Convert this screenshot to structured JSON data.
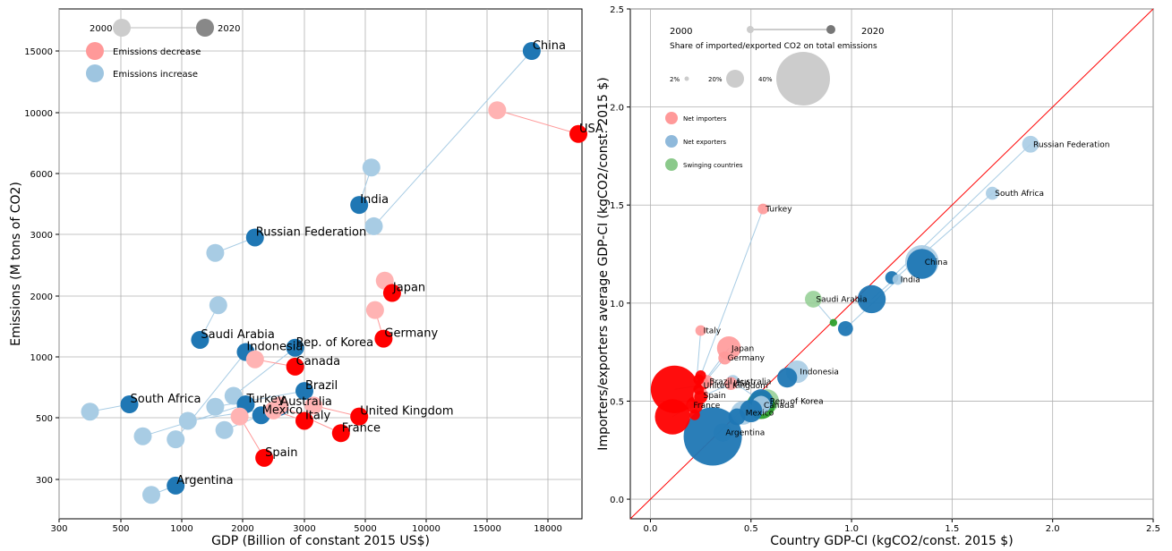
{
  "chart_data": [
    {
      "type": "scatter",
      "title": "",
      "xlabel": "GDP (Billion of constant 2015 US$)",
      "ylabel": "Emissions (M tons of CO2)",
      "x_ticks": [
        "300",
        "500",
        "1000",
        "2000",
        "3000",
        "5000",
        "10000",
        "15000",
        "18000"
      ],
      "y_ticks": [
        "300",
        "500",
        "1000",
        "2000",
        "3000",
        "6000",
        "10000",
        "15000"
      ],
      "grid": true,
      "legend": {
        "position": "top-left",
        "year_start": "2000",
        "year_end": "2020",
        "items": [
          {
            "label": "Emissions decrease",
            "color": "#ff9999"
          },
          {
            "label": "Emissions increase",
            "color": "#9ec5e0"
          }
        ]
      },
      "colors": {
        "decrease_2020": "#ff0000",
        "decrease_2000": "#ffb3b3",
        "increase_2020": "#1f77b4",
        "increase_2000": "#a8cce4",
        "line_decrease": "#ff9999",
        "line_increase": "#a8cce4"
      },
      "series": [
        {
          "label": "China",
          "trend": "increase",
          "x2000": 5700,
          "y2000": 3400,
          "x2020": 17200,
          "y2020": 15000
        },
        {
          "label": "USA",
          "trend": "decrease",
          "x2000": 15500,
          "y2000": 10200,
          "x2020": 19500,
          "y2020": 8600
        },
        {
          "label": "India",
          "trend": "increase",
          "x2000": 5500,
          "y2000": 6400,
          "x2020": 4800,
          "y2020": 4450
        },
        {
          "label": "Russian Federation",
          "trend": "increase",
          "x2000": 1550,
          "y2000": 2700,
          "x2020": 2200,
          "y2020": 2950
        },
        {
          "label": "Japan",
          "trend": "decrease",
          "x2000": 6600,
          "y2000": 2250,
          "x2020": 7200,
          "y2020": 2050
        },
        {
          "label": "Germany",
          "trend": "decrease",
          "x2000": 5800,
          "y2000": 1770,
          "x2020": 6500,
          "y2020": 1300
        },
        {
          "label": "Saudi Arabia",
          "trend": "increase",
          "x2000": 1600,
          "y2000": 1850,
          "x2020": 1300,
          "y2020": 1280
        },
        {
          "label": "Rep. of Korea",
          "trend": "increase",
          "x2000": 1850,
          "y2000": 680,
          "x2020": 2850,
          "y2020": 1150
        },
        {
          "label": "Indonesia",
          "trend": "increase",
          "x2000": 950,
          "y2000": 430,
          "x2020": 2050,
          "y2020": 1080
        },
        {
          "label": "Canada",
          "trend": "decrease",
          "x2000": 2200,
          "y2000": 980,
          "x2020": 2850,
          "y2020": 920
        },
        {
          "label": "South Africa",
          "trend": "increase",
          "x2000": 400,
          "y2000": 550,
          "x2020": 570,
          "y2020": 610
        },
        {
          "label": "Brazil",
          "trend": "increase",
          "x2000": 1550,
          "y2000": 590,
          "x2020": 3000,
          "y2020": 720
        },
        {
          "label": "Turkey",
          "trend": "increase",
          "x2000": 680,
          "y2000": 440,
          "x2020": 2050,
          "y2020": 610
        },
        {
          "label": "Australia",
          "trend": "increase",
          "x2000": 1100,
          "y2000": 490,
          "x2020": 2600,
          "y2020": 590
        },
        {
          "label": "Mexico",
          "trend": "increase",
          "x2000": 1700,
          "y2000": 460,
          "x2020": 2300,
          "y2020": 520
        },
        {
          "label": "Italy",
          "trend": "decrease",
          "x2000": 2500,
          "y2000": 560,
          "x2020": 3000,
          "y2020": 490
        },
        {
          "label": "United Kingdom",
          "trend": "decrease",
          "x2000": 3300,
          "y2000": 600,
          "x2020": 4800,
          "y2020": 510
        },
        {
          "label": "France",
          "trend": "decrease",
          "x2000": 2600,
          "y2000": 600,
          "x2020": 4200,
          "y2020": 450
        },
        {
          "label": "Spain",
          "trend": "decrease",
          "x2000": 1950,
          "y2000": 510,
          "x2020": 2350,
          "y2020": 370
        },
        {
          "label": "Argentina",
          "trend": "increase",
          "x2000": 750,
          "y2000": 250,
          "x2020": 950,
          "y2020": 280
        }
      ]
    },
    {
      "type": "scatter",
      "title": "",
      "xlabel": "Country GDP-CI (kgCO2/const. 2015 $)",
      "ylabel": "Importers/exporters average GDP-CI (kgCO2/const. 2015 $)",
      "xlim": [
        -0.1,
        2.5
      ],
      "ylim": [
        -0.1,
        2.5
      ],
      "x_ticks": [
        0.0,
        0.5,
        1.0,
        1.5,
        2.0,
        2.5
      ],
      "y_ticks": [
        0.0,
        0.5,
        1.0,
        1.5,
        2.0,
        2.5
      ],
      "x_tick_labels": [
        "0.0",
        "0.5",
        "1.0",
        "1.5",
        "2.0",
        "2.5"
      ],
      "y_tick_labels": [
        "0.0",
        "0.5",
        "1.0",
        "1.5",
        "2.0",
        "2.5"
      ],
      "grid": true,
      "diagonal": true,
      "legend": {
        "position": "top-left",
        "year_start": "2000",
        "year_end": "2020",
        "size_title": "Share of imported/exported CO2 on total emissions",
        "size_items": [
          {
            "label": "2%",
            "share": 2
          },
          {
            "label": "20%",
            "share": 20
          },
          {
            "label": "40%",
            "share": 40
          }
        ],
        "items": [
          {
            "label": "Net importers",
            "color": "#ff9999"
          },
          {
            "label": "Net exporters",
            "color": "#8fb9db"
          },
          {
            "label": "Swinging countries",
            "color": "#8bc98b"
          }
        ]
      },
      "colors": {
        "importer": "#ff0000",
        "importer_light": "#ff9999",
        "exporter": "#1f77b4",
        "exporter_light": "#a8cce4",
        "swing": "#2ca02c",
        "swing_light": "#98d098",
        "diagonal": "#ff0000"
      },
      "series": [
        {
          "label": "Russian Federation",
          "group": "exporter",
          "x2000": 1.89,
          "y2000": 1.81,
          "share2000": 5,
          "x2020": 1.2,
          "y2020": 1.13,
          "share2020": 3
        },
        {
          "label": "South Africa",
          "group": "exporter",
          "x2000": 1.7,
          "y2000": 1.56,
          "share2000": 3,
          "x2020": 1.1,
          "y2020": 1.02,
          "share2020": 14
        },
        {
          "label": "China",
          "group": "exporter",
          "x2000": 1.35,
          "y2000": 1.21,
          "share2000": 20,
          "x2020": 1.35,
          "y2020": 1.2,
          "share2020": 16
        },
        {
          "label": "India",
          "group": "exporter",
          "x2000": 1.23,
          "y2000": 1.12,
          "share2000": 2,
          "x2020": 0.97,
          "y2020": 0.87,
          "share2020": 4
        },
        {
          "label": "Turkey",
          "group": "importer",
          "x2000": 0.56,
          "y2000": 1.48,
          "share2000": 2,
          "x2020": 0.25,
          "y2020": 0.63,
          "share2020": 2
        },
        {
          "label": "Saudi Arabia",
          "group": "swing",
          "x2000": 0.81,
          "y2000": 1.02,
          "share2000": 5,
          "x2020": 0.91,
          "y2020": 0.9,
          "share2020": 1
        },
        {
          "label": "Italy",
          "group": "importer",
          "x2000": 0.25,
          "y2000": 0.86,
          "share2000": 2,
          "x2020": 0.22,
          "y2020": 0.48,
          "share2020": 5
        },
        {
          "label": "Japan",
          "group": "importer",
          "x2000": 0.39,
          "y2000": 0.77,
          "share2000": 10,
          "x2020": 0.26,
          "y2020": 0.59,
          "share2020": 3
        },
        {
          "label": "Germany",
          "group": "importer",
          "x2000": 0.37,
          "y2000": 0.72,
          "share2000": 3,
          "x2020": 0.24,
          "y2020": 0.56,
          "share2020": 2
        },
        {
          "label": "Indonesia",
          "group": "exporter",
          "x2000": 0.73,
          "y2000": 0.65,
          "share2000": 9,
          "x2020": 0.68,
          "y2020": 0.62,
          "share2020": 7
        },
        {
          "label": "Brazil",
          "group": "importer",
          "x2000": 0.28,
          "y2000": 0.6,
          "share2000": 3,
          "x2020": 0.24,
          "y2020": 0.61,
          "share2020": 2
        },
        {
          "label": "Australia",
          "group": "exporter",
          "x2000": 0.41,
          "y2000": 0.6,
          "share2000": 3,
          "x2020": 0.55,
          "y2020": 0.5,
          "share2020": 10
        },
        {
          "label": "United Kingdom",
          "group": "importer",
          "x2000": 0.25,
          "y2000": 0.58,
          "share2000": 2,
          "x2020": 0.12,
          "y2020": 0.56,
          "share2020": 40
        },
        {
          "label": "USA",
          "group": "importer",
          "x2000": 0.4,
          "y2000": 0.59,
          "share2000": 3,
          "x2020": 0.25,
          "y2020": 0.52,
          "share2020": 3
        },
        {
          "label": "Spain",
          "group": "importer",
          "x2000": 0.25,
          "y2000": 0.53,
          "share2000": 4,
          "x2020": 0.22,
          "y2020": 0.43,
          "share2020": 2
        },
        {
          "label": "Rep. of Korea",
          "group": "swing",
          "x2000": 0.58,
          "y2000": 0.5,
          "share2000": 10,
          "x2020": 0.55,
          "y2020": 0.48,
          "share2020": 14
        },
        {
          "label": "France",
          "group": "importer",
          "x2000": 0.2,
          "y2000": 0.48,
          "share2000": 1,
          "x2020": 0.11,
          "y2020": 0.42,
          "share2020": 22
        },
        {
          "label": "Canada",
          "group": "exporter",
          "x2000": 0.55,
          "y2000": 0.48,
          "share2000": 6,
          "x2020": 0.5,
          "y2020": 0.45,
          "share2020": 9
        },
        {
          "label": "Mexico",
          "group": "exporter",
          "x2000": 0.46,
          "y2000": 0.44,
          "share2000": 10,
          "x2020": 0.43,
          "y2020": 0.42,
          "share2020": 5
        },
        {
          "label": "Argentina",
          "group": "exporter",
          "x2000": 0.36,
          "y2000": 0.34,
          "share2000": 6,
          "x2020": 0.31,
          "y2020": 0.32,
          "share2020": 60
        }
      ]
    }
  ]
}
